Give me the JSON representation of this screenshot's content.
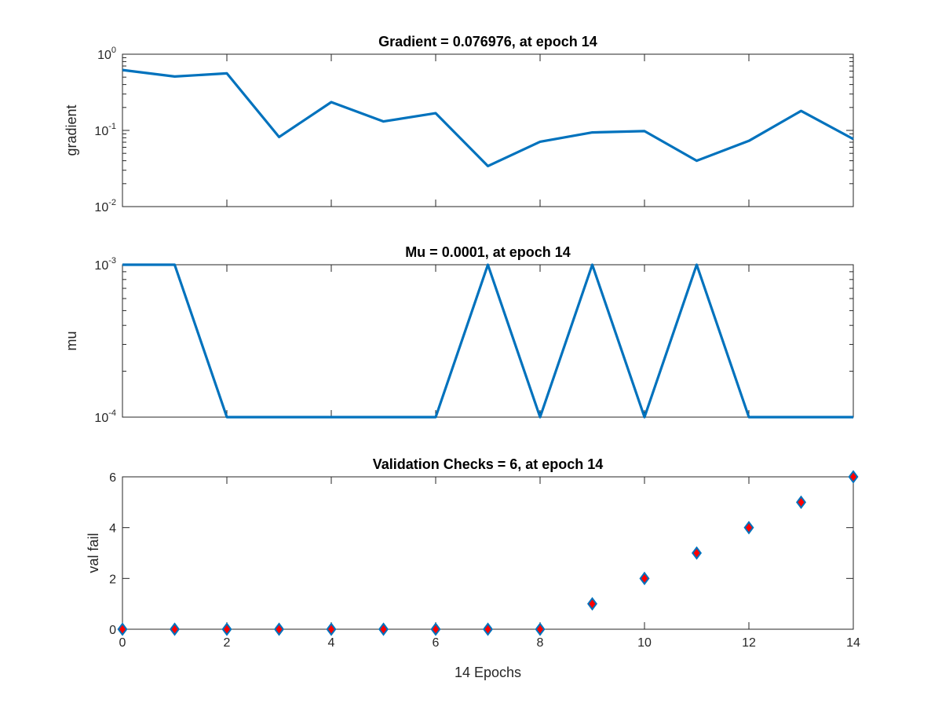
{
  "chart_data": [
    {
      "type": "line",
      "scale": "log",
      "title": "Gradient = 0.076976, at epoch 14",
      "ylabel": "gradient",
      "xlabel": "",
      "xlim": [
        0,
        14
      ],
      "ylim": [
        0.01,
        1
      ],
      "x_ticks": [
        0,
        2,
        4,
        6,
        8,
        10,
        12,
        14
      ],
      "y_ticks": [
        {
          "value": 1,
          "base": "10",
          "exp": "0"
        },
        {
          "value": 0.1,
          "base": "10",
          "exp": "-1"
        },
        {
          "value": 0.01,
          "base": "10",
          "exp": "-2"
        }
      ],
      "series": [
        {
          "name": "gradient",
          "color": "#0072BD",
          "x": [
            0,
            1,
            2,
            3,
            4,
            5,
            6,
            7,
            8,
            9,
            10,
            11,
            12,
            13,
            14
          ],
          "values": [
            0.62,
            0.51,
            0.56,
            0.082,
            0.235,
            0.131,
            0.168,
            0.034,
            0.071,
            0.094,
            0.098,
            0.04,
            0.073,
            0.18,
            0.076976
          ]
        }
      ]
    },
    {
      "type": "line",
      "scale": "log",
      "title": "Mu = 0.0001, at epoch 14",
      "ylabel": "mu",
      "xlabel": "",
      "xlim": [
        0,
        14
      ],
      "ylim": [
        0.0001,
        0.001
      ],
      "x_ticks": [
        0,
        2,
        4,
        6,
        8,
        10,
        12,
        14
      ],
      "y_ticks": [
        {
          "value": 0.001,
          "base": "10",
          "exp": "-3"
        },
        {
          "value": 0.0001,
          "base": "10",
          "exp": "-4"
        }
      ],
      "series": [
        {
          "name": "mu",
          "color": "#0072BD",
          "x": [
            0,
            1,
            2,
            3,
            4,
            5,
            6,
            7,
            8,
            9,
            10,
            11,
            12,
            13,
            14
          ],
          "values": [
            0.001,
            0.001,
            0.0001,
            0.0001,
            0.0001,
            0.0001,
            0.0001,
            0.001,
            0.0001,
            0.001,
            0.0001,
            0.001,
            0.0001,
            0.0001,
            0.0001
          ]
        }
      ]
    },
    {
      "type": "scatter",
      "scale": "linear",
      "title": "Validation Checks = 6, at epoch 14",
      "ylabel": "val fail",
      "xlabel": "14 Epochs",
      "xlim": [
        0,
        14
      ],
      "ylim": [
        0,
        6
      ],
      "x_ticks": [
        0,
        2,
        4,
        6,
        8,
        10,
        12,
        14
      ],
      "y_ticks": [
        {
          "value": 0,
          "label": "0"
        },
        {
          "value": 2,
          "label": "2"
        },
        {
          "value": 4,
          "label": "4"
        },
        {
          "value": 6,
          "label": "6"
        }
      ],
      "series": [
        {
          "name": "val fail",
          "color": "#0072BD",
          "fill": "#FF0000",
          "marker": "diamond",
          "x": [
            0,
            1,
            2,
            3,
            4,
            5,
            6,
            7,
            8,
            9,
            10,
            11,
            12,
            13,
            14
          ],
          "values": [
            0,
            0,
            0,
            0,
            0,
            0,
            0,
            0,
            0,
            1,
            2,
            3,
            4,
            5,
            6
          ]
        }
      ]
    }
  ]
}
